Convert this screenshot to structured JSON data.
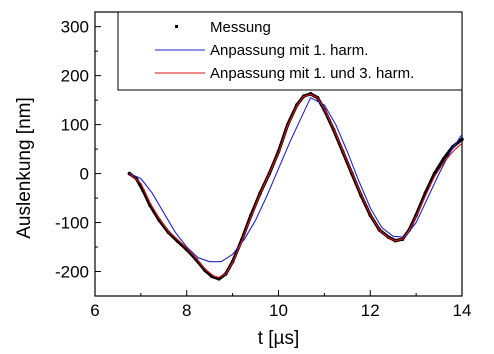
{
  "chart_data": {
    "type": "line",
    "title": "",
    "xlabel": "t [µs]",
    "ylabel": "Auslenkung [nm]",
    "xlim": [
      6,
      14
    ],
    "ylim": [
      -250,
      330
    ],
    "x_ticks": [
      6,
      8,
      10,
      12,
      14
    ],
    "y_ticks": [
      -200,
      -100,
      0,
      100,
      200,
      300
    ],
    "grid": false,
    "legend_position": "top-right",
    "series": [
      {
        "name": "Messung",
        "style": "markers",
        "color": "#000000",
        "x": [
          6.75,
          6.9,
          7.05,
          7.2,
          7.4,
          7.6,
          7.8,
          8.0,
          8.2,
          8.4,
          8.55,
          8.7,
          8.85,
          9.0,
          9.2,
          9.4,
          9.6,
          9.8,
          10.0,
          10.2,
          10.4,
          10.55,
          10.7,
          10.85,
          11.0,
          11.2,
          11.4,
          11.6,
          11.8,
          12.0,
          12.2,
          12.4,
          12.55,
          12.7,
          12.85,
          13.0,
          13.2,
          13.4,
          13.6,
          13.8,
          14.0
        ],
        "y": [
          0,
          -10,
          -35,
          -65,
          -95,
          -120,
          -138,
          -155,
          -175,
          -198,
          -210,
          -215,
          -205,
          -180,
          -135,
          -85,
          -40,
          0,
          45,
          100,
          140,
          158,
          163,
          155,
          130,
          90,
          45,
          0,
          -45,
          -85,
          -115,
          -130,
          -137,
          -134,
          -115,
          -85,
          -40,
          0,
          30,
          55,
          70
        ]
      },
      {
        "name": "Anpassung mit 1. harm.",
        "style": "line",
        "color": "#2222cc",
        "x": [
          6.75,
          7.0,
          7.25,
          7.5,
          7.75,
          8.0,
          8.25,
          8.5,
          8.75,
          9.0,
          9.25,
          9.5,
          9.75,
          10.0,
          10.25,
          10.5,
          10.7,
          11.0,
          11.25,
          11.5,
          11.75,
          12.0,
          12.25,
          12.5,
          12.75,
          13.0,
          13.25,
          13.5,
          13.75,
          14.0
        ],
        "y": [
          0,
          -10,
          -40,
          -80,
          -120,
          -150,
          -172,
          -180,
          -180,
          -165,
          -135,
          -95,
          -45,
          10,
          65,
          115,
          155,
          140,
          100,
          45,
          -15,
          -70,
          -110,
          -128,
          -130,
          -100,
          -50,
          0,
          45,
          80
        ]
      },
      {
        "name": "Anpassung mit 1. und 3. harm.",
        "style": "line",
        "color": "#dd1111",
        "x": [
          6.75,
          7.0,
          7.2,
          7.4,
          7.6,
          7.8,
          8.0,
          8.2,
          8.4,
          8.6,
          8.7,
          8.85,
          9.0,
          9.2,
          9.4,
          9.6,
          9.8,
          10.0,
          10.2,
          10.4,
          10.55,
          10.7,
          10.85,
          11.0,
          11.2,
          11.4,
          11.6,
          11.8,
          12.0,
          12.2,
          12.4,
          12.55,
          12.7,
          12.85,
          13.0,
          13.2,
          13.4,
          13.6,
          13.8,
          14.0
        ],
        "y": [
          0,
          -20,
          -60,
          -92,
          -118,
          -135,
          -152,
          -172,
          -195,
          -210,
          -212,
          -205,
          -182,
          -138,
          -88,
          -42,
          0,
          42,
          98,
          138,
          157,
          162,
          155,
          132,
          92,
          47,
          2,
          -43,
          -84,
          -115,
          -131,
          -137,
          -134,
          -116,
          -88,
          -46,
          -6,
          22,
          45,
          62
        ]
      }
    ]
  }
}
